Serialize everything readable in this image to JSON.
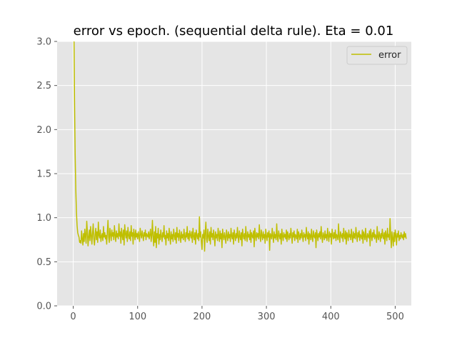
{
  "chart_data": {
    "type": "line",
    "title": "error vs epoch. (sequential delta rule). Eta = 0.01",
    "xlabel": "",
    "ylabel": "",
    "xlim": [
      -25,
      525
    ],
    "ylim": [
      0.0,
      3.0
    ],
    "xticks": [
      "0",
      "100",
      "200",
      "300",
      "400",
      "500"
    ],
    "yticks": [
      "0.0",
      "0.5",
      "1.0",
      "1.5",
      "2.0",
      "2.5",
      "3.0"
    ],
    "grid": true,
    "legend_position": "top-right",
    "colors": {
      "series": "#bfbf00",
      "background": "#e5e5e5",
      "grid": "#ffffff",
      "tick_text": "#555555"
    },
    "series": [
      {
        "name": "error",
        "x_start": 1,
        "x_step": 1,
        "values": [
          3.2,
          2.35,
          1.72,
          1.32,
          1.06,
          0.91,
          0.83,
          0.8,
          0.78,
          0.72,
          0.74,
          0.71,
          0.85,
          0.76,
          0.69,
          0.82,
          0.73,
          0.87,
          0.79,
          0.71,
          0.96,
          0.84,
          0.68,
          0.78,
          0.86,
          0.74,
          0.9,
          0.8,
          0.7,
          0.83,
          0.93,
          0.76,
          0.69,
          0.81,
          0.88,
          0.75,
          0.84,
          0.72,
          0.95,
          0.8,
          0.77,
          0.86,
          0.73,
          0.79,
          0.82,
          0.74,
          0.9,
          0.78,
          0.83,
          0.76,
          0.8,
          0.7,
          0.84,
          0.97,
          0.78,
          0.72,
          0.88,
          0.81,
          0.74,
          0.86,
          0.79,
          0.83,
          0.75,
          0.91,
          0.8,
          0.73,
          0.85,
          0.78,
          0.82,
          0.76,
          0.93,
          0.79,
          0.84,
          0.71,
          0.88,
          0.8,
          0.75,
          0.86,
          0.69,
          0.92,
          0.82,
          0.77,
          0.85,
          0.73,
          0.89,
          0.8,
          0.76,
          0.84,
          0.74,
          0.91,
          0.79,
          0.83,
          0.7,
          0.87,
          0.81,
          0.75,
          0.86,
          0.78,
          0.82,
          0.76,
          0.84,
          0.79,
          0.73,
          0.88,
          0.81,
          0.77,
          0.85,
          0.8,
          0.74,
          0.83,
          0.79,
          0.86,
          0.75,
          0.82,
          0.8,
          0.78,
          0.84,
          0.76,
          0.81,
          0.87,
          0.73,
          0.8,
          0.97,
          0.78,
          0.68,
          0.84,
          0.72,
          0.9,
          0.66,
          0.82,
          0.77,
          0.88,
          0.7,
          0.81,
          0.75,
          0.86,
          0.79,
          0.73,
          0.83,
          0.78,
          0.91,
          0.76,
          0.8,
          0.69,
          0.85,
          0.77,
          0.82,
          0.74,
          0.88,
          0.79,
          0.7,
          0.84,
          0.76,
          0.81,
          0.73,
          0.87,
          0.8,
          0.75,
          0.83,
          0.71,
          0.89,
          0.78,
          0.82,
          0.74,
          0.86,
          0.79,
          0.72,
          0.84,
          0.77,
          0.81,
          0.75,
          0.87,
          0.79,
          0.73,
          0.83,
          0.78,
          0.9,
          0.76,
          0.82,
          0.74,
          0.85,
          0.8,
          0.77,
          0.84,
          0.72,
          0.88,
          0.79,
          0.75,
          0.83,
          0.7,
          0.86,
          0.8,
          0.76,
          0.82,
          0.74,
          1.01,
          0.78,
          0.84,
          0.73,
          0.64,
          0.81,
          0.77,
          0.86,
          0.62,
          0.83,
          0.95,
          0.76,
          0.72,
          0.87,
          0.79,
          0.74,
          0.84,
          0.7,
          0.89,
          0.78,
          0.82,
          0.75,
          0.86,
          0.79,
          0.68,
          0.84,
          0.77,
          0.81,
          0.74,
          0.88,
          0.8,
          0.73,
          0.85,
          0.76,
          0.82,
          0.66,
          0.87,
          0.79,
          0.75,
          0.83,
          0.78,
          0.71,
          0.86,
          0.8,
          0.74,
          0.84,
          0.77,
          0.81,
          0.73,
          0.88,
          0.79,
          0.76,
          0.83,
          0.7,
          0.86,
          0.8,
          0.74,
          0.82,
          0.77,
          0.89,
          0.78,
          0.72,
          0.85,
          0.79,
          0.75,
          0.83,
          0.68,
          0.87,
          0.8,
          0.76,
          0.82,
          0.74,
          0.9,
          0.79,
          0.73,
          0.84,
          0.78,
          0.81,
          0.75,
          0.86,
          0.72,
          0.83,
          0.79,
          0.77,
          0.85,
          0.67,
          0.88,
          0.8,
          0.74,
          0.83,
          0.78,
          0.82,
          0.76,
          0.92,
          0.79,
          0.73,
          0.86,
          0.8,
          0.75,
          0.84,
          0.77,
          0.81,
          0.71,
          0.87,
          0.79,
          0.74,
          0.83,
          0.78,
          0.85,
          0.63,
          0.82,
          0.8,
          0.76,
          0.88,
          0.79,
          0.72,
          0.84,
          0.77,
          0.81,
          0.75,
          0.93,
          0.78,
          0.73,
          0.85,
          0.8,
          0.76,
          0.82,
          0.7,
          0.87,
          0.79,
          0.74,
          0.83,
          0.78,
          0.81,
          0.76,
          0.86,
          0.73,
          0.84,
          0.79,
          0.75,
          0.82,
          0.77,
          0.88,
          0.8,
          0.71,
          0.83,
          0.78,
          0.85,
          0.74,
          0.81,
          0.79,
          0.76,
          0.87,
          0.72,
          0.84,
          0.8,
          0.75,
          0.82,
          0.77,
          0.86,
          0.79,
          0.73,
          0.83,
          0.78,
          0.81,
          0.74,
          0.89,
          0.79,
          0.76,
          0.84,
          0.7,
          0.82,
          0.8,
          0.75,
          0.87,
          0.78,
          0.73,
          0.85,
          0.79,
          0.77,
          0.83,
          0.66,
          0.86,
          0.8,
          0.74,
          0.82,
          0.78,
          0.84,
          0.76,
          0.9,
          0.79,
          0.72,
          0.83,
          0.8,
          0.75,
          0.85,
          0.77,
          0.81,
          0.74,
          0.88,
          0.79,
          0.73,
          0.84,
          0.78,
          0.82,
          0.7,
          0.87,
          0.8,
          0.76,
          0.83,
          0.77,
          0.86,
          0.74,
          0.81,
          0.79,
          0.75,
          0.93,
          0.78,
          0.72,
          0.84,
          0.8,
          0.77,
          0.82,
          0.73,
          0.88,
          0.79,
          0.76,
          0.85,
          0.7,
          0.83,
          0.8,
          0.74,
          0.86,
          0.78,
          0.81,
          0.75,
          0.87,
          0.79,
          0.72,
          0.84,
          0.77,
          0.82,
          0.76,
          0.89,
          0.8,
          0.73,
          0.83,
          0.78,
          0.85,
          0.74,
          0.81,
          0.79,
          0.76,
          0.86,
          0.71,
          0.84,
          0.8,
          0.75,
          0.88,
          0.78,
          0.73,
          0.82,
          0.79,
          0.77,
          0.85,
          0.68,
          0.87,
          0.8,
          0.74,
          0.83,
          0.78,
          0.86,
          0.76,
          0.81,
          0.79,
          0.72,
          0.9,
          0.78,
          0.75,
          0.84,
          0.8,
          0.73,
          0.82,
          0.77,
          0.87,
          0.79,
          0.76,
          0.83,
          0.7,
          0.85,
          0.8,
          0.74,
          0.88,
          0.78,
          0.81,
          0.75,
          0.99,
          0.79,
          0.66,
          0.84,
          0.77,
          0.68,
          0.83,
          0.73,
          0.86,
          0.8,
          0.69,
          0.82,
          0.78,
          0.85,
          0.74,
          0.8,
          0.76,
          0.83,
          0.79,
          0.77,
          0.81,
          0.75,
          0.84,
          0.78,
          0.82,
          0.76
        ]
      }
    ]
  }
}
